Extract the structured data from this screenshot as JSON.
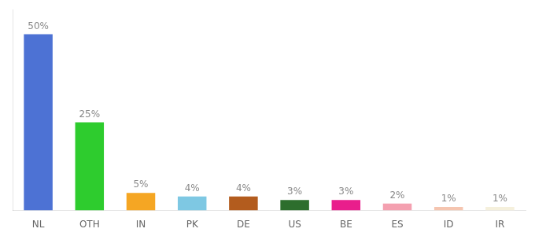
{
  "chart_data": {
    "type": "bar",
    "categories": [
      "NL",
      "OTH",
      "IN",
      "PK",
      "DE",
      "US",
      "BE",
      "ES",
      "ID",
      "IR"
    ],
    "values": [
      50,
      25,
      5,
      4,
      4,
      3,
      3,
      2,
      1,
      1
    ],
    "value_labels": [
      "50%",
      "25%",
      "5%",
      "4%",
      "4%",
      "3%",
      "3%",
      "2%",
      "1%",
      "1%"
    ],
    "colors": [
      "#4d72d4",
      "#2ecc2e",
      "#f5a623",
      "#7ec8e3",
      "#b35c1e",
      "#2d6e2d",
      "#e91e8c",
      "#f4a0b0",
      "#f5c5b0",
      "#f5f0dc"
    ],
    "ylim": [
      0,
      57
    ],
    "data_labels": true,
    "tick_labels": "x",
    "grid": false
  }
}
